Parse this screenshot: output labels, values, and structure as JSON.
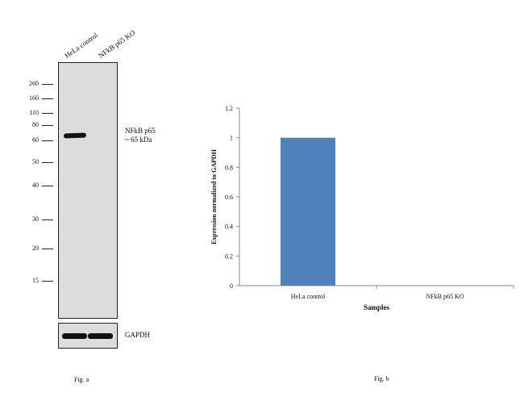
{
  "western_blot": {
    "lanes": [
      "HeLa control",
      "NFkB p65 KO"
    ],
    "markers": [
      "260",
      "160",
      "110",
      "80",
      "60",
      "50",
      "40",
      "30",
      "20",
      "15"
    ],
    "target_label_line1": "NFkB p65",
    "target_label_line2": "~ 65 kDa",
    "loading_control": "GAPDH",
    "caption": "Fig. a"
  },
  "chart_data": {
    "type": "bar",
    "categories": [
      "HeLa control",
      "NFkB p65 KO"
    ],
    "values": [
      1,
      0
    ],
    "xlabel": "Samples",
    "ylabel": "Expression normalized to GAPDH",
    "ylim": [
      0,
      1.2
    ],
    "yticks": [
      0,
      0.2,
      0.4,
      0.6,
      0.8,
      1,
      1.2
    ],
    "ytick_labels": [
      "0",
      "0.2",
      "0.4",
      "0.6",
      "0.8",
      "1",
      "1.2"
    ],
    "bar_color": "#4f81bd",
    "grid": false,
    "caption": "Fig. b"
  }
}
